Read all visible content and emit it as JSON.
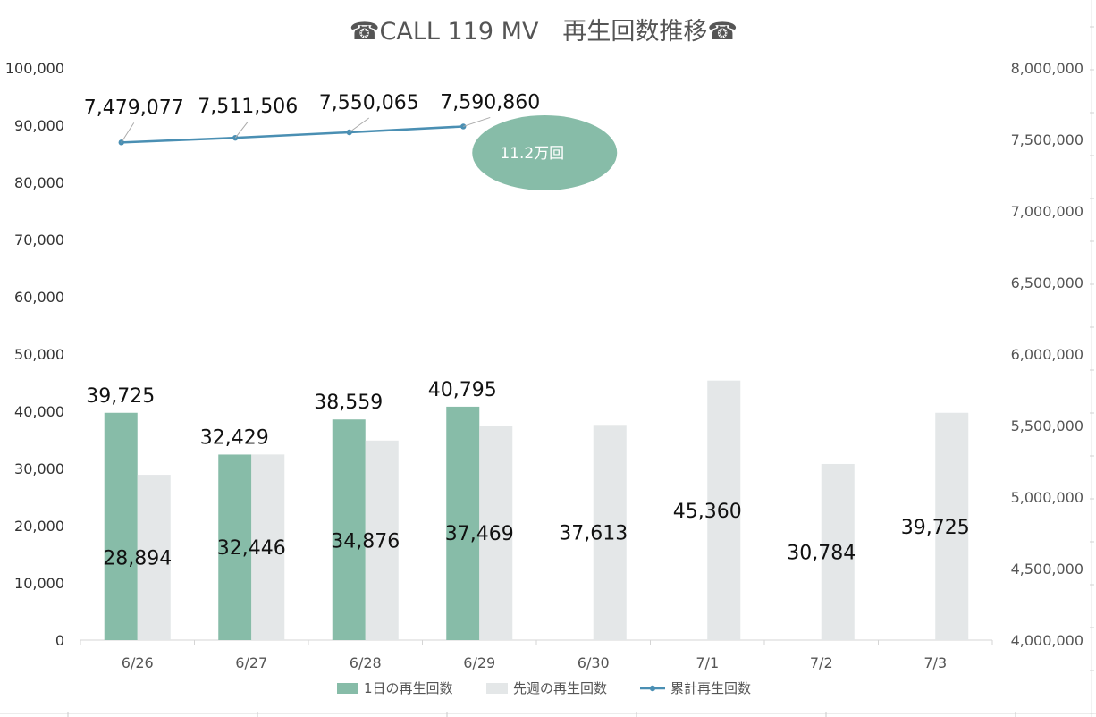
{
  "chart_data": {
    "type": "bar",
    "title": "☎CALL 119 MV　再生回数推移☎",
    "categories": [
      "6/26",
      "6/27",
      "6/28",
      "6/29",
      "6/30",
      "7/1",
      "7/2",
      "7/3"
    ],
    "series": [
      {
        "name": "1日の再生回数",
        "type": "bar",
        "axis": "left",
        "color": "#87bca8",
        "values": [
          39725,
          32429,
          38559,
          40795,
          null,
          null,
          null,
          null
        ],
        "labels": [
          "39,725",
          "32,429",
          "38,559",
          "40,795"
        ]
      },
      {
        "name": "先週の再生回数",
        "type": "bar",
        "axis": "left",
        "color": "#e4e7e8",
        "values": [
          28894,
          32446,
          34876,
          37469,
          37613,
          45360,
          30784,
          39725
        ],
        "labels": [
          "28,894",
          "32,446",
          "34,876",
          "37,469",
          "37,613",
          "45,360",
          "30,784",
          "39,725"
        ]
      },
      {
        "name": "累計再生回数",
        "type": "line",
        "axis": "right",
        "color": "#4a8fb3",
        "values": [
          7479077,
          7511506,
          7550065,
          7590860,
          null,
          null,
          null,
          null
        ],
        "labels": [
          "7,479,077",
          "7,511,506",
          "7,550,065",
          "7,590,860"
        ]
      }
    ],
    "y_left": {
      "range": [
        0,
        100000
      ],
      "ticks": [
        0,
        10000,
        20000,
        30000,
        40000,
        50000,
        60000,
        70000,
        80000,
        90000,
        100000
      ],
      "tick_labels": [
        "0",
        "10,000",
        "20,000",
        "30,000",
        "40,000",
        "50,000",
        "60,000",
        "70,000",
        "80,000",
        "90,000",
        "100,000"
      ]
    },
    "y_right": {
      "range": [
        4000000,
        8000000
      ],
      "ticks": [
        4000000,
        4500000,
        5000000,
        5500000,
        6000000,
        6500000,
        7000000,
        7500000,
        8000000
      ],
      "tick_labels": [
        "4,000,000",
        "4,500,000",
        "5,000,000",
        "5,500,000",
        "6,000,000",
        "6,500,000",
        "7,000,000",
        "7,500,000",
        "8,000,000"
      ]
    },
    "grid": false,
    "legend_position": "bottom",
    "annotation": {
      "text": "11.2万回",
      "color": "#87bca8"
    }
  }
}
